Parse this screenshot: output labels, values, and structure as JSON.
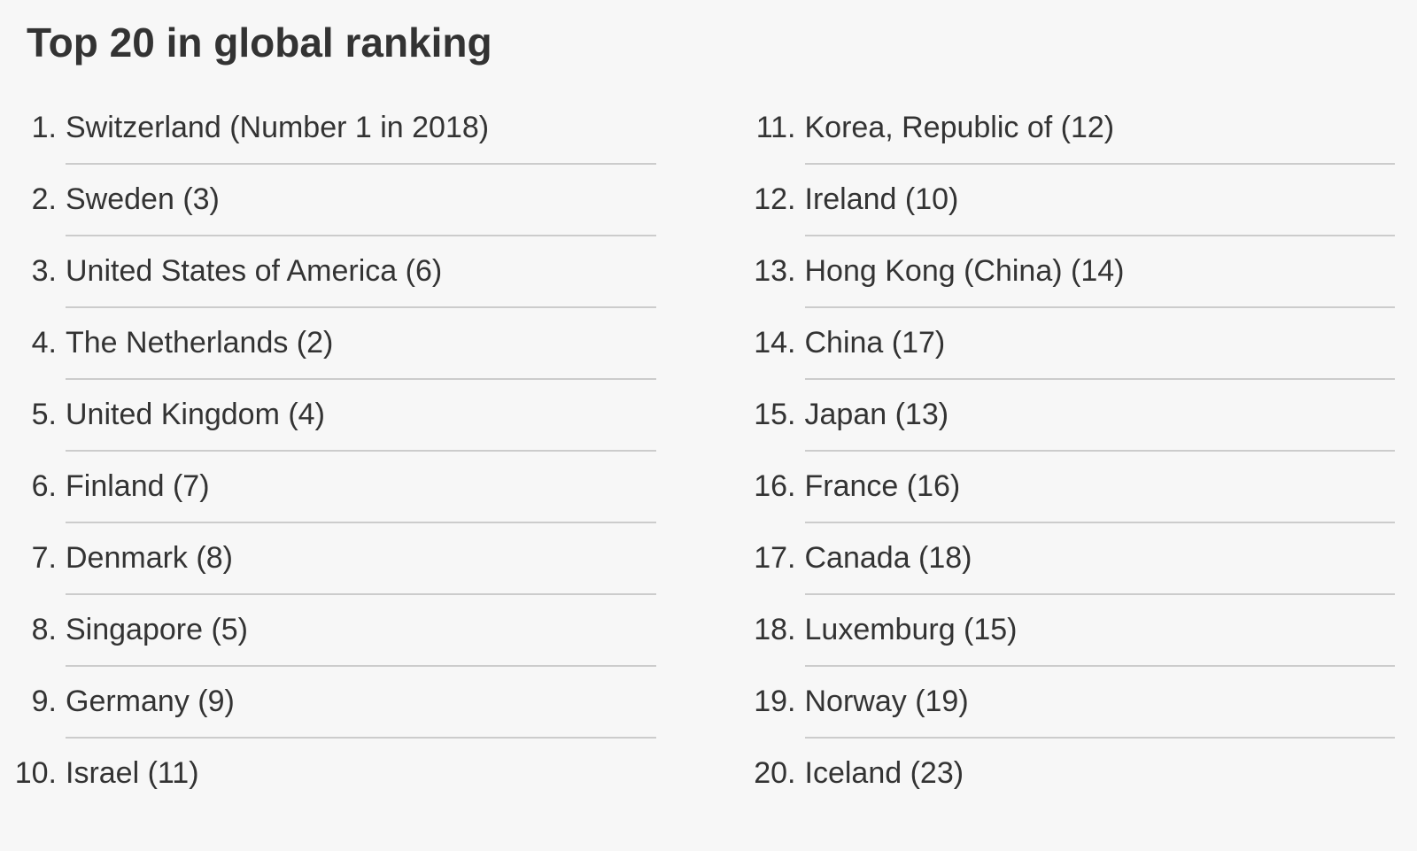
{
  "page": {
    "title": "Top 20 in global ranking",
    "background_color": "#f7f7f7",
    "text_color": "#333333",
    "divider_color": "#cccccc"
  },
  "ranking": {
    "columns": [
      {
        "items": [
          {
            "number": "1.",
            "label": "Switzerland (Number 1 in 2018)"
          },
          {
            "number": "2.",
            "label": "Sweden (3)"
          },
          {
            "number": "3.",
            "label": "United States of America (6)"
          },
          {
            "number": "4.",
            "label": "The Netherlands (2)"
          },
          {
            "number": "5.",
            "label": "United Kingdom (4)"
          },
          {
            "number": "6.",
            "label": "Finland (7)"
          },
          {
            "number": "7.",
            "label": "Denmark (8)"
          },
          {
            "number": "8.",
            "label": "Singapore (5)"
          },
          {
            "number": "9.",
            "label": "Germany (9)"
          },
          {
            "number": "10.",
            "label": "Israel (11)"
          }
        ]
      },
      {
        "items": [
          {
            "number": "11.",
            "label": "Korea, Republic of (12)"
          },
          {
            "number": "12.",
            "label": "Ireland (10)"
          },
          {
            "number": "13.",
            "label": "Hong Kong (China) (14)"
          },
          {
            "number": "14.",
            "label": "China (17)"
          },
          {
            "number": "15.",
            "label": "Japan (13)"
          },
          {
            "number": "16.",
            "label": "France (16)"
          },
          {
            "number": "17.",
            "label": "Canada (18)"
          },
          {
            "number": "18.",
            "label": "Luxemburg (15)"
          },
          {
            "number": "19.",
            "label": "Norway (19)"
          },
          {
            "number": "20.",
            "label": "Iceland (23)"
          }
        ]
      }
    ]
  }
}
